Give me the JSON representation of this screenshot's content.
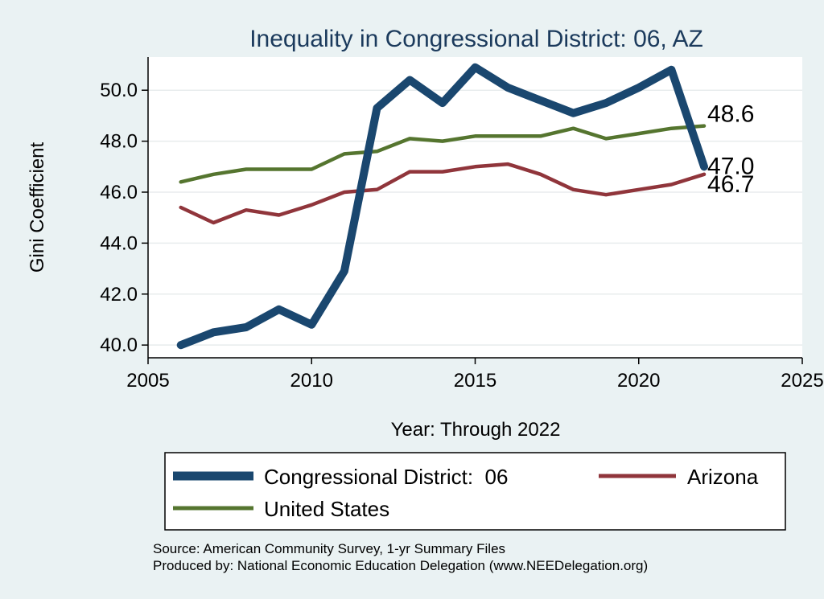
{
  "chart_data": {
    "type": "line",
    "title": "Inequality in Congressional District:  06, AZ",
    "xlabel": "Year: Through 2022",
    "ylabel": "Gini Coefficient",
    "xlim": [
      2005,
      2025
    ],
    "ylim": [
      39.5,
      51.3
    ],
    "xticks": [
      "2005",
      "2010",
      "2015",
      "2020",
      "2025"
    ],
    "yticks": [
      "40.0",
      "42.0",
      "44.0",
      "46.0",
      "48.0",
      "50.0"
    ],
    "x": [
      2006,
      2007,
      2008,
      2009,
      2010,
      2011,
      2012,
      2013,
      2014,
      2015,
      2016,
      2017,
      2018,
      2019,
      2020,
      2021,
      2022
    ],
    "series": [
      {
        "name": "Congressional District:  06",
        "color": "#1a476f",
        "values": [
          40.0,
          40.5,
          40.7,
          41.4,
          40.8,
          42.9,
          49.3,
          50.4,
          49.5,
          50.9,
          50.1,
          49.6,
          49.1,
          49.5,
          50.1,
          50.8,
          47.0
        ],
        "end_label": "47.0"
      },
      {
        "name": "Arizona",
        "color": "#90353b",
        "values": [
          45.4,
          44.8,
          45.3,
          45.1,
          45.5,
          46.0,
          46.1,
          46.8,
          46.8,
          47.0,
          47.1,
          46.7,
          46.1,
          45.9,
          46.1,
          46.3,
          46.7
        ],
        "end_label": "46.7"
      },
      {
        "name": "United States",
        "color": "#55752f",
        "values": [
          46.4,
          46.7,
          46.9,
          46.9,
          46.9,
          47.5,
          47.6,
          48.1,
          48.0,
          48.2,
          48.2,
          48.2,
          48.5,
          48.1,
          48.3,
          48.5,
          48.6
        ],
        "end_label": "48.6"
      }
    ],
    "grid": true,
    "legend_position": "bottom"
  },
  "source_line": "Source: American Community Survey, 1-yr Summary Files",
  "produced_line": "Produced by: National Economic Education Delegation (www.NEEDelegation.org)"
}
